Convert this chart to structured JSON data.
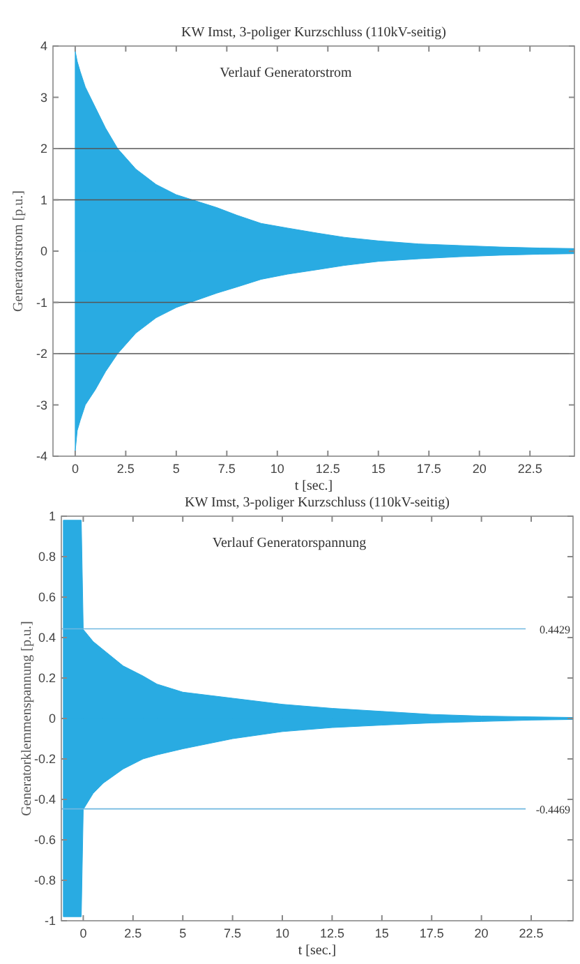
{
  "chart_data": [
    {
      "type": "area",
      "title": "KW Imst, 3-poliger Kurzschluss (110kV-seitig)",
      "xlabel": "t [sec.]",
      "ylabel": "Generatorstrom [p.u.]",
      "annotations": [
        "Verlauf Generatorstrom"
      ],
      "xlim": [
        -1.1,
        24.7
      ],
      "xticks": [
        0,
        2.5,
        5,
        7.5,
        10,
        12.5,
        15,
        17.5,
        20,
        22.5
      ],
      "ylim": [
        -4,
        4
      ],
      "yticks": [
        -4,
        -3,
        -2,
        -1,
        0,
        1,
        2,
        3,
        4
      ],
      "grid": false,
      "ref_lines": [
        {
          "axis": "y",
          "value": 2,
          "color": "#555555"
        },
        {
          "axis": "y",
          "value": 1,
          "color": "#555555"
        },
        {
          "axis": "y",
          "value": -1,
          "color": "#555555"
        },
        {
          "axis": "y",
          "value": -2,
          "color": "#555555"
        }
      ],
      "series": [
        {
          "color": "#29abe2",
          "x": [
            0,
            0.1,
            0.25,
            0.5,
            1,
            1.5,
            2.1,
            3,
            4,
            5,
            5.8,
            7,
            8,
            9.2,
            10.5,
            12,
            13.3,
            15,
            17,
            19,
            21,
            23,
            24.7
          ],
          "values": [
            3.9,
            3.7,
            3.5,
            3.2,
            2.8,
            2.4,
            2.0,
            1.6,
            1.3,
            1.1,
            1.0,
            0.85,
            0.7,
            0.54,
            0.45,
            0.35,
            0.27,
            0.2,
            0.14,
            0.11,
            0.08,
            0.06,
            0.05
          ]
        },
        {
          "color": "#29abe2",
          "x": [
            0,
            0.1,
            0.25,
            0.5,
            1,
            1.5,
            2.1,
            3,
            4,
            5,
            5.7,
            7,
            8,
            9.2,
            10.5,
            12,
            13.3,
            15,
            17,
            19,
            21,
            23,
            24.7
          ],
          "values": [
            -3.9,
            -3.5,
            -3.3,
            -3.0,
            -2.7,
            -2.35,
            -2.0,
            -1.6,
            -1.3,
            -1.1,
            -1.0,
            -0.82,
            -0.7,
            -0.55,
            -0.45,
            -0.36,
            -0.28,
            -0.2,
            -0.15,
            -0.11,
            -0.08,
            -0.06,
            -0.05
          ]
        }
      ]
    },
    {
      "type": "area",
      "title": "KW Imst, 3-poliger Kurzschluss (110kV-seitig)",
      "xlabel": "t [sec.]",
      "ylabel": "Generatorklemmenspannung [p.u.]",
      "annotations": [
        "Verlauf Generatorspannung"
      ],
      "xlim": [
        -1.1,
        24.6
      ],
      "xticks": [
        0,
        2.5,
        5,
        7.5,
        10,
        12.5,
        15,
        17.5,
        20,
        22.5
      ],
      "ylim": [
        -1,
        1
      ],
      "yticks": [
        -1,
        -0.8,
        -0.6,
        -0.4,
        -0.2,
        0,
        0.2,
        0.4,
        0.6,
        0.8,
        1
      ],
      "grid": false,
      "ref_lines": [
        {
          "axis": "y",
          "value": 0.4429,
          "label": "0.4429",
          "color": "#6fb7e0"
        },
        {
          "axis": "y",
          "value": -0.4469,
          "label": "-0.4469",
          "color": "#6fb7e0"
        }
      ],
      "x": [
        -1,
        -0.1,
        0,
        0.5,
        1,
        2,
        3,
        3.7,
        5,
        7.5,
        10,
        12.5,
        15,
        17.5,
        20,
        22.5,
        24.6
      ],
      "series": [
        {
          "color": "#29abe2",
          "values": [
            0.98,
            0.98,
            0.44,
            0.38,
            0.34,
            0.26,
            0.21,
            0.17,
            0.13,
            0.1,
            0.07,
            0.05,
            0.035,
            0.02,
            0.012,
            0.008,
            0.005
          ]
        },
        {
          "color": "#29abe2",
          "values": [
            -0.98,
            -0.98,
            -0.45,
            -0.37,
            -0.32,
            -0.25,
            -0.2,
            -0.18,
            -0.15,
            -0.1,
            -0.065,
            -0.045,
            -0.033,
            -0.022,
            -0.015,
            -0.008,
            -0.005
          ]
        }
      ]
    }
  ]
}
